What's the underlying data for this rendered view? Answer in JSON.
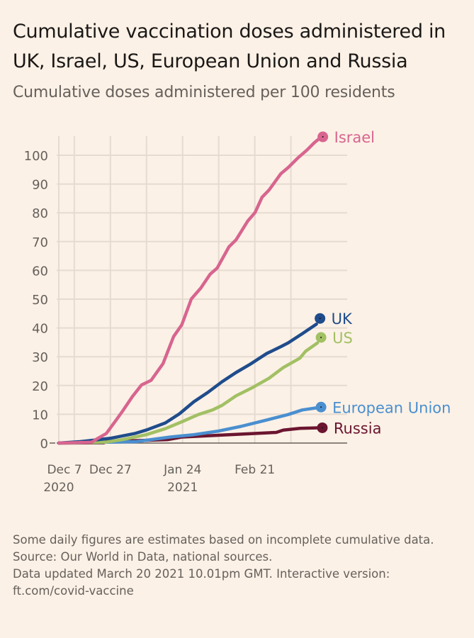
{
  "title": "Cumulative vaccination doses administered in UK, Israel, US, European Union and Russia",
  "subtitle": "Cumulative doses administered per 100 residents",
  "footnotes": [
    "Some daily figures are estimates based on incomplete cumulative data.",
    "Source: Our World in Data, national sources.",
    "Data updated March 20 2021 10.01pm GMT. Interactive version: ft.com/covid-vaccine"
  ],
  "chart_data": {
    "type": "line",
    "title": "Cumulative vaccination doses administered in UK, Israel, US, European Union and Russia",
    "ylabel": "Cumulative doses administered per 100 residents",
    "x_unit": "days since Dec 7 2020",
    "xlim": [
      0,
      112
    ],
    "ylim": [
      0,
      106
    ],
    "yticks": [
      0,
      10,
      20,
      30,
      40,
      50,
      60,
      70,
      80,
      90,
      100
    ],
    "xticks": [
      {
        "day": 0,
        "label": "Dec 7",
        "sub": "2020"
      },
      {
        "day": 20,
        "label": "Dec 27",
        "sub": ""
      },
      {
        "day": 48,
        "label": "Jan 24",
        "sub": "2021"
      },
      {
        "day": 76,
        "label": "Feb 21",
        "sub": ""
      }
    ],
    "gridlines_x": [
      0,
      6,
      20,
      34,
      48,
      62,
      76,
      90
    ],
    "grid": true,
    "series": [
      {
        "name": "Israel",
        "color": "#d7658f",
        "points": [
          [
            0,
            0
          ],
          [
            12.8,
            0.3
          ],
          [
            14.5,
            1.3
          ],
          [
            18.4,
            3.3
          ],
          [
            22.1,
            7.8
          ],
          [
            24.8,
            11.2
          ],
          [
            28.5,
            16.1
          ],
          [
            32.1,
            20.2
          ],
          [
            35.8,
            21.8
          ],
          [
            38.1,
            24.7
          ],
          [
            40.4,
            27.6
          ],
          [
            44.5,
            37.0
          ],
          [
            47.7,
            41.1
          ],
          [
            51.4,
            50.1
          ],
          [
            55.0,
            53.8
          ],
          [
            58.7,
            58.7
          ],
          [
            61.4,
            60.8
          ],
          [
            66.0,
            68.2
          ],
          [
            68.7,
            70.6
          ],
          [
            73.3,
            77.2
          ],
          [
            76.1,
            80.1
          ],
          [
            78.8,
            85.4
          ],
          [
            81.5,
            87.9
          ],
          [
            86.1,
            93.6
          ],
          [
            88.9,
            95.7
          ],
          [
            92.6,
            99.0
          ],
          [
            96.2,
            101.8
          ],
          [
            99.0,
            104.3
          ],
          [
            101.0,
            105.8
          ]
        ],
        "end": 106.4
      },
      {
        "name": "UK",
        "color": "#1f4c8c",
        "points": [
          [
            0,
            0
          ],
          [
            8.3,
            0.5
          ],
          [
            20.3,
            1.7
          ],
          [
            29.4,
            3.3
          ],
          [
            33.9,
            4.5
          ],
          [
            41.3,
            7.0
          ],
          [
            46.8,
            10.2
          ],
          [
            52.3,
            14.3
          ],
          [
            57.8,
            17.6
          ],
          [
            63.3,
            21.3
          ],
          [
            68.7,
            24.5
          ],
          [
            74.2,
            27.4
          ],
          [
            80.6,
            31.1
          ],
          [
            86.1,
            33.5
          ],
          [
            88.9,
            34.8
          ],
          [
            94.4,
            38.0
          ],
          [
            99.9,
            41.3
          ]
        ],
        "end": 43.3
      },
      {
        "name": "US",
        "color": "#a2c064",
        "points": [
          [
            0,
            0
          ],
          [
            18,
            0.3
          ],
          [
            24.8,
            1.2
          ],
          [
            33.9,
            2.9
          ],
          [
            41.3,
            5.0
          ],
          [
            47.7,
            7.4
          ],
          [
            54.1,
            9.9
          ],
          [
            59.6,
            11.5
          ],
          [
            63.3,
            13.1
          ],
          [
            68.7,
            16.4
          ],
          [
            75.2,
            19.3
          ],
          [
            81.5,
            22.5
          ],
          [
            87.0,
            26.2
          ],
          [
            93.5,
            29.5
          ],
          [
            95.7,
            31.9
          ],
          [
            100.3,
            34.8
          ]
        ],
        "end": 36.7
      },
      {
        "name": "European Union",
        "color": "#4a8fd0",
        "points": [
          [
            0,
            0
          ],
          [
            30,
            0.5
          ],
          [
            43.2,
            2.1
          ],
          [
            52.3,
            2.9
          ],
          [
            61.4,
            4.1
          ],
          [
            70.6,
            5.8
          ],
          [
            79.7,
            7.8
          ],
          [
            88.9,
            9.9
          ],
          [
            94.4,
            11.5
          ],
          [
            100.3,
            12.3
          ]
        ],
        "end": 12.5
      },
      {
        "name": "Russia",
        "color": "#6b1530",
        "points": [
          [
            0,
            0
          ],
          [
            17.5,
            0.1
          ],
          [
            18.4,
            0.5
          ],
          [
            33.0,
            0.9
          ],
          [
            42.2,
            1.2
          ],
          [
            47.7,
            2.1
          ],
          [
            56.9,
            2.5
          ],
          [
            66.0,
            2.9
          ],
          [
            75.2,
            3.3
          ],
          [
            84.3,
            3.7
          ],
          [
            87.0,
            4.5
          ],
          [
            93.5,
            5.1
          ],
          [
            100.8,
            5.3
          ]
        ],
        "end": 5.3
      }
    ]
  }
}
